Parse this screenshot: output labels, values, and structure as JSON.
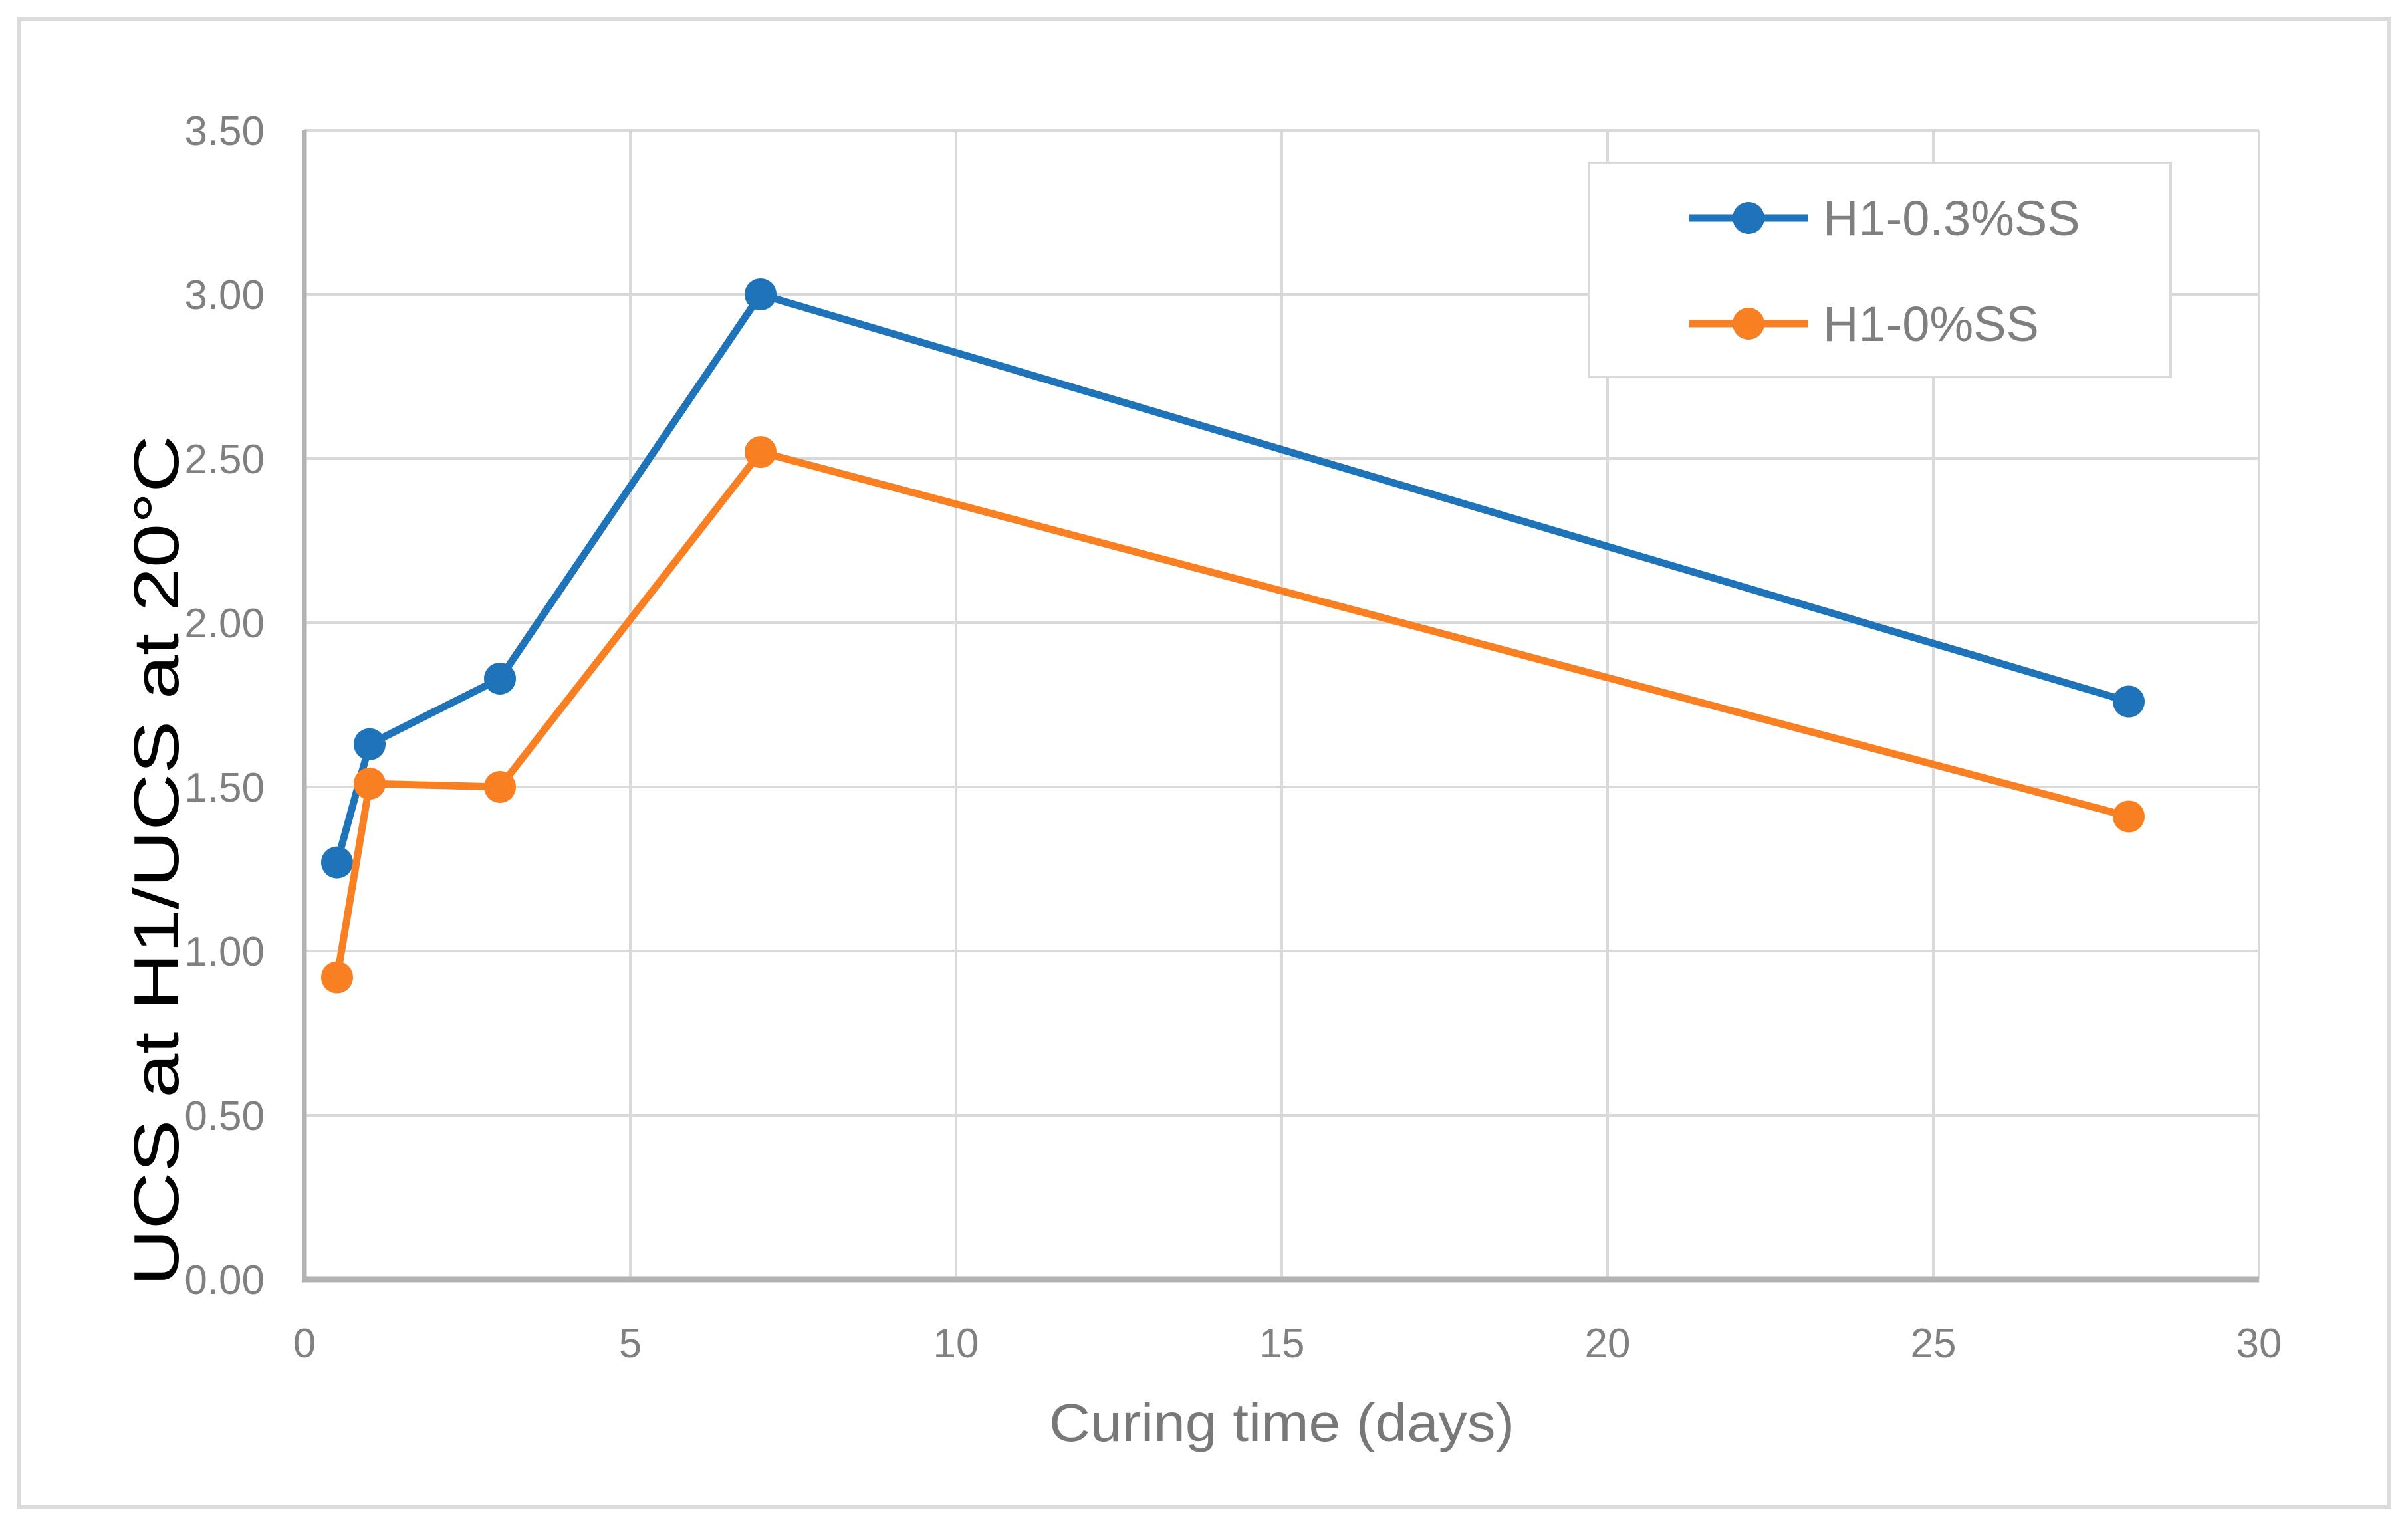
{
  "figure": {
    "background_color": "#FFFFFF",
    "border_color": "#DBDBDB"
  },
  "chart_data": {
    "type": "line",
    "title": "",
    "xlabel": "Curing time (days)",
    "ylabel": "UCS at H1/UCS at 20°C",
    "x": [
      0.5,
      1,
      3,
      7,
      28
    ],
    "series": [
      {
        "name": "H1-0.3%SS",
        "color": "#1E73B9",
        "marker": "circle",
        "values": [
          1.27,
          1.63,
          1.83,
          3.0,
          1.76
        ]
      },
      {
        "name": "H1-0%SS",
        "color": "#F88023",
        "marker": "circle",
        "values": [
          0.92,
          1.51,
          1.5,
          2.52,
          1.41
        ]
      }
    ],
    "xlim": [
      0,
      30
    ],
    "ylim": [
      0,
      3.5
    ],
    "x_tick_step": 5,
    "y_tick_step": 0.5,
    "x_tick_labels": [
      "0",
      "5",
      "10",
      "15",
      "20",
      "25",
      "30"
    ],
    "y_tick_labels": [
      "0.00",
      "0.50",
      "1.00",
      "1.50",
      "2.00",
      "2.50",
      "3.00",
      "3.50"
    ],
    "grid": "both",
    "legend_position": "top-right",
    "gridline_color": "#D9D9D9",
    "axis_line_color": "#B2B2B2",
    "tick_label_color": "#808080",
    "x_axis_title_color": "#787878",
    "y_axis_title_color": "#000000",
    "legend_text_color": "#7F7F7F",
    "legend_border_color": "#D9D9D9",
    "line_width": 11,
    "marker_radius": 24
  }
}
